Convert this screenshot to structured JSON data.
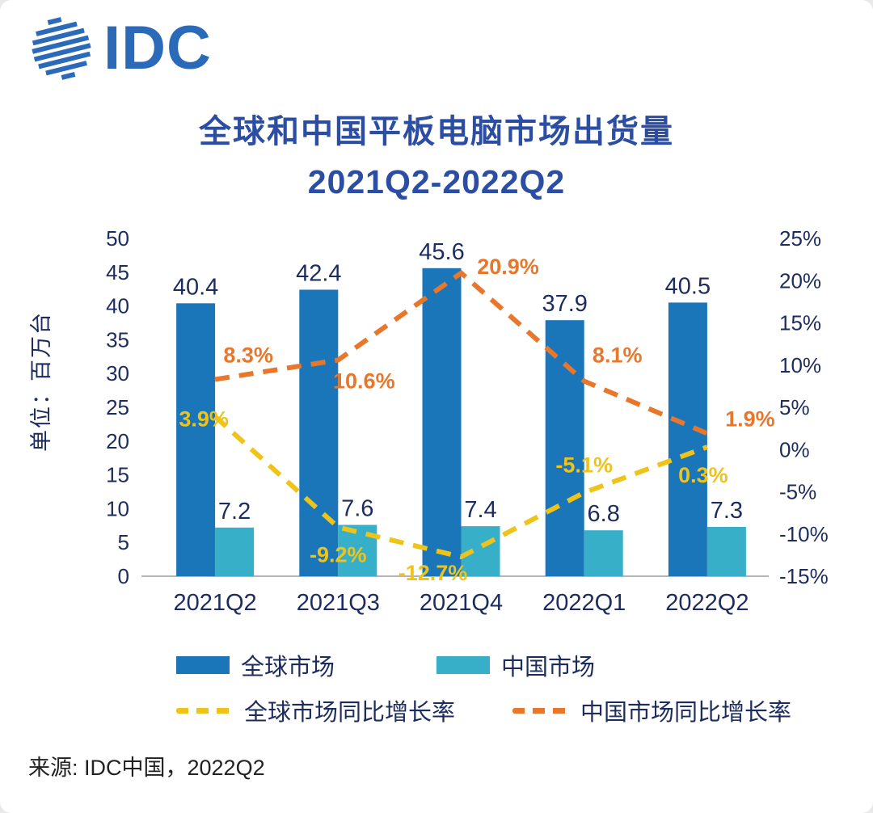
{
  "logo": {
    "text": "IDC",
    "color": "#2a6ab8"
  },
  "title": {
    "line1": "全球和中国平板电脑市场出货量",
    "line2": "2021Q2-2022Q2",
    "color": "#2b4da3"
  },
  "source": "来源: IDC中国，2022Q2",
  "chart_data": {
    "type": "bar+line",
    "title": "全球和中国平板电脑市场出货量 2021Q2-2022Q2",
    "categories": [
      "2021Q2",
      "2021Q3",
      "2021Q4",
      "2022Q1",
      "2022Q2"
    ],
    "bar_series": [
      {
        "name": "全球市场",
        "color": "#1b76b9",
        "values": [
          40.4,
          42.4,
          45.6,
          37.9,
          40.5
        ]
      },
      {
        "name": "中国市场",
        "color": "#38afc8",
        "values": [
          7.2,
          7.6,
          7.4,
          6.8,
          7.3
        ]
      }
    ],
    "line_series": [
      {
        "name": "全球市场同比增长率",
        "color": "#eec31a",
        "values_pct": [
          3.9,
          -9.2,
          -12.7,
          -5.1,
          0.3
        ]
      },
      {
        "name": "中国市场同比增长率",
        "color": "#e8772b",
        "values_pct": [
          8.3,
          10.6,
          20.9,
          8.1,
          1.9
        ]
      }
    ],
    "left_axis": {
      "label": "单位：百万台",
      "min": 0,
      "max": 50,
      "step": 5,
      "ticks": [
        50,
        45,
        40,
        35,
        30,
        25,
        20,
        15,
        10,
        5,
        0
      ]
    },
    "right_axis": {
      "min": -15,
      "max": 25,
      "step": 5,
      "ticks": [
        "25%",
        "20%",
        "15%",
        "10%",
        "5%",
        "0%",
        "-5%",
        "-10%",
        "-15%"
      ]
    },
    "legend_position": "bottom",
    "grid": false
  }
}
